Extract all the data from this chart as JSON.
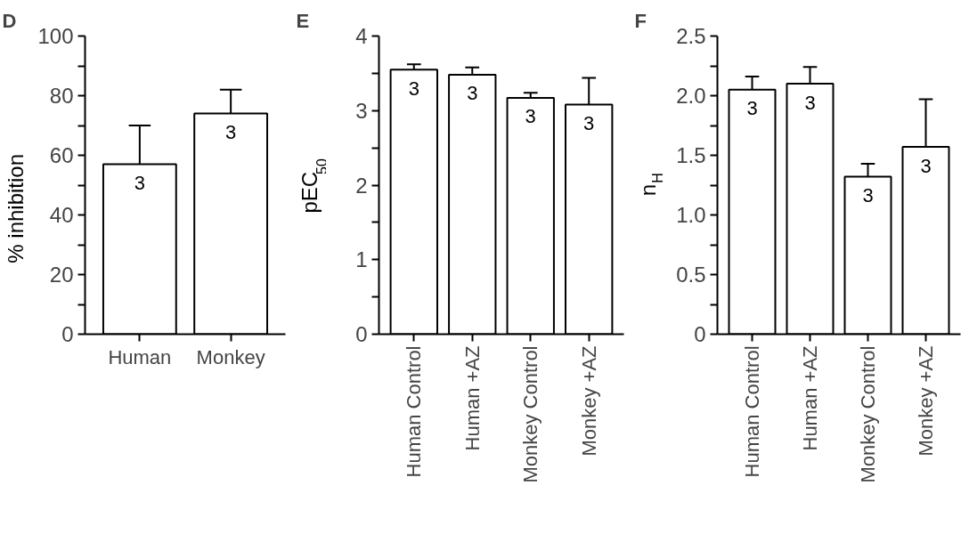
{
  "chart_data": [
    {
      "type": "bar",
      "title": "D",
      "ylabel": "% inhibition",
      "categories": [
        "Human",
        "Monkey"
      ],
      "values": [
        57,
        74
      ],
      "errors": [
        [
          57,
          70
        ],
        [
          74,
          82
        ]
      ],
      "annotations": [
        {
          "text": "3",
          "x": "Human",
          "y": 57
        },
        {
          "text": "3",
          "x": "Monkey",
          "y": 74
        }
      ],
      "color": "#ffffff",
      "ylim": [
        0,
        100
      ],
      "yticks": [
        0,
        {
          "value": 10,
          "label": null
        },
        20,
        {
          "value": 30,
          "label": null
        },
        40,
        {
          "value": 50,
          "label": null
        },
        60,
        {
          "value": 70,
          "label": null
        },
        80,
        {
          "value": 90,
          "label": null
        },
        100
      ],
      "grid": false
    },
    {
      "type": "bar",
      "title": "E",
      "ylabel": "pEC$_{50}$",
      "categories": [
        "Human Control",
        "Human +AZ",
        "Monkey Control",
        "Monkey +AZ"
      ],
      "values": [
        3.55,
        3.48,
        3.17,
        3.08
      ],
      "errors": [
        [
          3.55,
          3.62
        ],
        [
          3.48,
          3.58
        ],
        [
          3.17,
          3.24
        ],
        [
          3.08,
          3.44
        ]
      ],
      "annotations": [
        {
          "text": "3",
          "x": "Human Control",
          "y": 3.55
        },
        {
          "text": "3",
          "x": "Human +AZ",
          "y": 3.48
        },
        {
          "text": "3",
          "x": "Monkey Control",
          "y": 3.17
        },
        {
          "text": "3",
          "x": "Monkey +AZ",
          "y": 3.08
        }
      ],
      "color": "#ffffff",
      "ylim": [
        0,
        4
      ],
      "yticks": [
        0,
        {
          "value": 0.5,
          "label": null
        },
        1,
        {
          "value": 1.5,
          "label": null
        },
        2,
        {
          "value": 2.5,
          "label": null
        },
        3,
        {
          "value": 3.5,
          "label": null
        },
        4
      ],
      "grid": false
    },
    {
      "type": "bar",
      "title": "F",
      "ylabel": "n$_{H}$",
      "categories": [
        "Human Control",
        "Human +AZ",
        "Monkey Control",
        "Monkey +AZ"
      ],
      "values": [
        2.05,
        2.1,
        1.32,
        1.57
      ],
      "errors": [
        [
          2.05,
          2.16
        ],
        [
          2.1,
          2.24
        ],
        [
          1.32,
          1.43
        ],
        [
          1.57,
          1.97
        ]
      ],
      "annotations": [
        {
          "text": "3",
          "x": "Human Control",
          "y": 2.05
        },
        {
          "text": "3",
          "x": "Human +AZ",
          "y": 2.1
        },
        {
          "text": "3",
          "x": "Monkey Control",
          "y": 1.32
        },
        {
          "text": "3",
          "x": "Monkey +AZ",
          "y": 1.57
        }
      ],
      "color": "#ffffff",
      "ylim": [
        0,
        2.5
      ],
      "yticks": [
        0,
        {
          "value": 0.25,
          "label": null
        },
        {
          "value": 0.5,
          "label": "0.5"
        },
        {
          "value": 0.75,
          "label": null
        },
        {
          "value": 1,
          "label": "1.0"
        },
        {
          "value": 1.25,
          "label": null
        },
        {
          "value": 1.5,
          "label": "1.5"
        },
        {
          "value": 1.75,
          "label": null
        },
        {
          "value": 2,
          "label": "2.0"
        },
        {
          "value": 2.25,
          "label": null
        },
        {
          "value": 2.5,
          "label": "2.5"
        }
      ],
      "grid": false
    }
  ]
}
